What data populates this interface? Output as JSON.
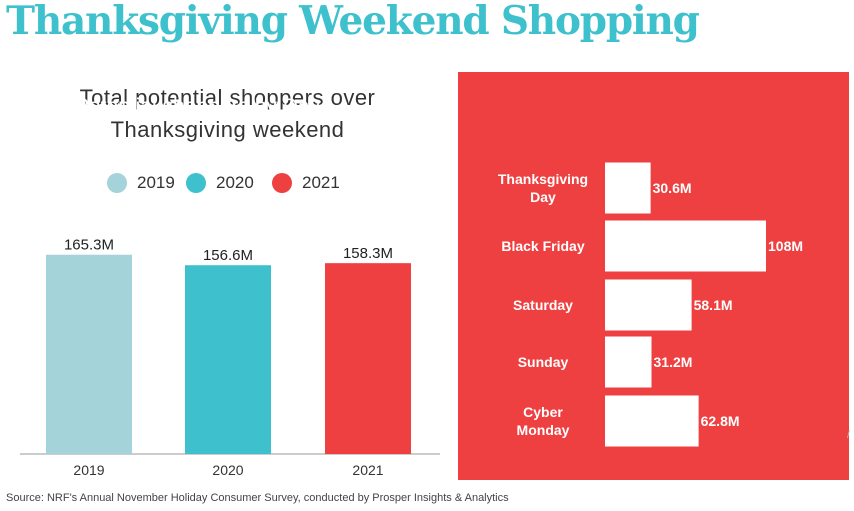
{
  "page": {
    "title": "Thanksgiving Weekend Shopping",
    "source": "Source: NRF's Annual November Holiday Consumer Survey, conducted by Prosper Insights & Analytics",
    "title_color": "#3ec1cd"
  },
  "chart_data": [
    {
      "type": "bar",
      "title": "Total potential shoppers over Thanksgiving weekend",
      "categories": [
        "2019",
        "2020",
        "2021"
      ],
      "values": [
        165.3,
        156.6,
        158.3
      ],
      "value_labels": [
        "165.3M",
        "156.6M",
        "158.3M"
      ],
      "unit": "M",
      "colors": [
        "#a4d3da",
        "#3ec1cd",
        "#ee4040"
      ],
      "legend": {
        "position": "top",
        "entries": [
          {
            "label": "2019",
            "color": "#a4d3da"
          },
          {
            "label": "2020",
            "color": "#3ec1cd"
          },
          {
            "label": "2021",
            "color": "#ee4040"
          }
        ]
      },
      "ylim": [
        0,
        180
      ],
      "grid": false
    },
    {
      "type": "bar",
      "orientation": "horizontal",
      "title": "Potential shoppers by Day",
      "categories": [
        "Thanksgiving\nDay",
        "Black Friday",
        "Saturday",
        "Sunday",
        "Cyber\nMonday"
      ],
      "values": [
        30.6,
        108,
        58.1,
        31.2,
        62.8
      ],
      "value_labels": [
        "30.6M",
        "108M",
        "58.1M",
        "31.2M",
        "62.8M"
      ],
      "unit": "M",
      "bar_color": "#ffffff",
      "background_color": "#ee4040",
      "xlim": [
        0,
        108
      ],
      "grid": false
    }
  ]
}
